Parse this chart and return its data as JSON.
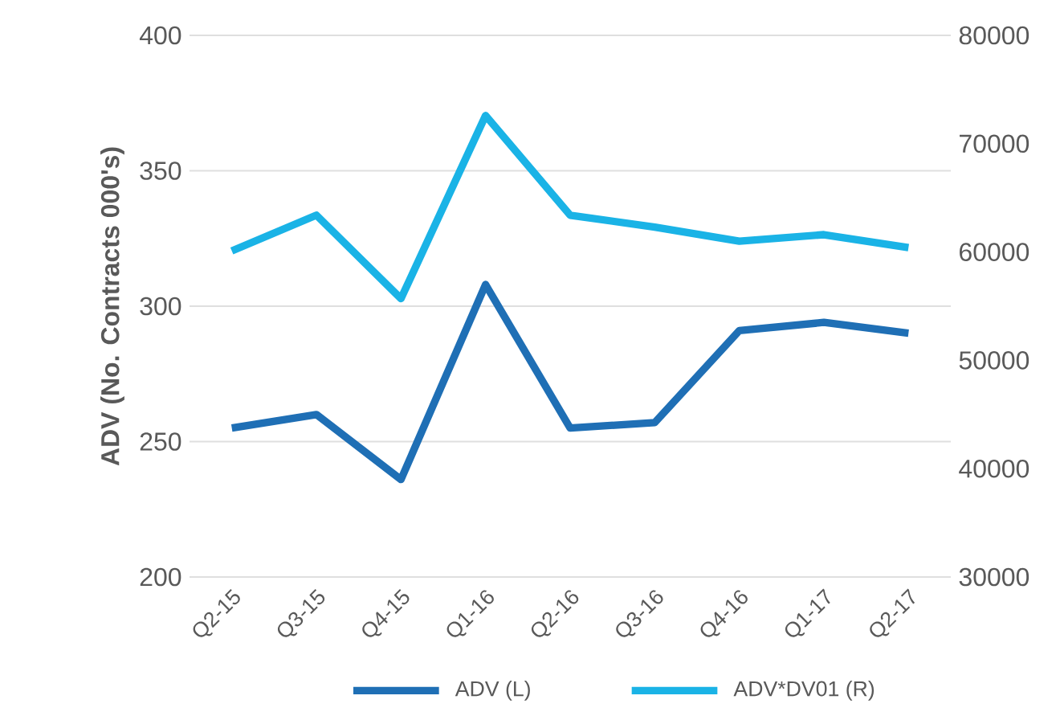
{
  "chart_data": {
    "type": "line",
    "ylabel": "ADV (No. Contracts 000's)",
    "categories": [
      "Q2-15",
      "Q3-15",
      "Q4-15",
      "Q1-16",
      "Q2-16",
      "Q3-16",
      "Q4-16",
      "Q1-17",
      "Q2-17"
    ],
    "series": [
      {
        "name": "ADV (L)",
        "color": "#1f6fb5",
        "values": [
          255,
          260,
          236,
          308,
          255,
          257,
          291,
          294,
          290
        ]
      },
      {
        "name": "ADV*DV01 (R)",
        "color": "#1ab3e6",
        "axis": "y2",
        "values": [
          60100,
          63400,
          55700,
          72600,
          63400,
          62300,
          61000,
          61600,
          60400
        ]
      }
    ],
    "ylim": [
      200,
      400
    ],
    "yticks": [
      200,
      250,
      300,
      350,
      400
    ],
    "y2lim": [
      30000,
      80000
    ],
    "y2ticks": [
      30000,
      40000,
      50000,
      60000,
      70000,
      80000
    ],
    "grid": "y",
    "legend": "bottom",
    "marker": "none",
    "line_style": "solid"
  }
}
